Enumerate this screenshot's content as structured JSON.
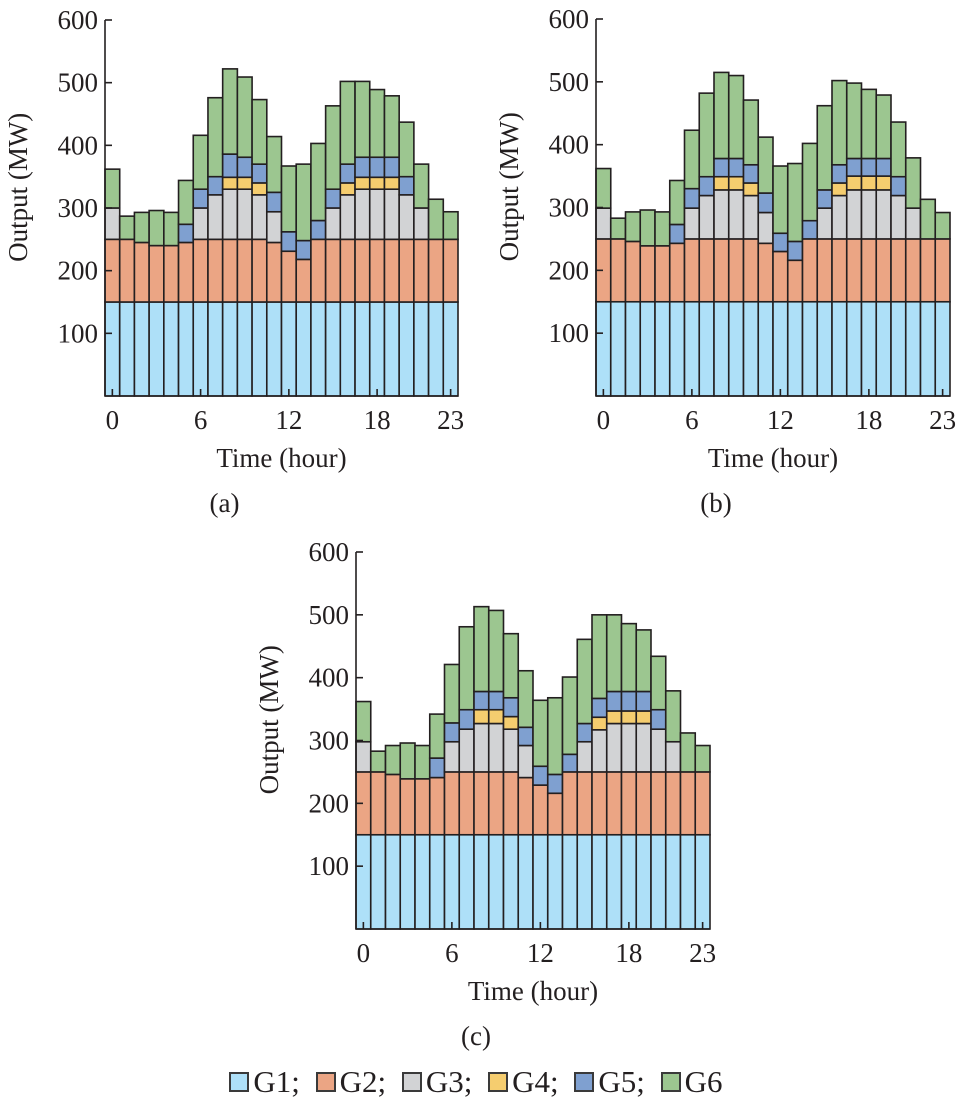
{
  "legend": {
    "items": [
      {
        "label": "G1;",
        "color": "#aee0f8"
      },
      {
        "label": "G2;",
        "color": "#eba584"
      },
      {
        "label": "G3;",
        "color": "#d2d3d5"
      },
      {
        "label": "G4;",
        "color": "#f5cd6f"
      },
      {
        "label": "G5;",
        "color": "#7fa0d0"
      },
      {
        "label": "G6",
        "color": "#9cc690"
      }
    ]
  },
  "chart_data": [
    {
      "type": "bar",
      "stacked": true,
      "panel_label": "(a)",
      "title": "",
      "xlabel": "Time (hour)",
      "ylabel": "Output (MW)",
      "ylim": [
        0,
        600
      ],
      "yticks": [
        "100",
        "200",
        "300",
        "400",
        "500",
        "600"
      ],
      "xticks": [
        "0",
        "6",
        "12",
        "18",
        "23"
      ],
      "x": [
        0,
        1,
        2,
        3,
        4,
        5,
        6,
        7,
        8,
        9,
        10,
        11,
        12,
        13,
        14,
        15,
        16,
        17,
        18,
        19,
        20,
        21,
        22,
        23
      ],
      "series": [
        {
          "name": "G1",
          "values": [
            150,
            150,
            150,
            150,
            150,
            150,
            150,
            150,
            150,
            150,
            150,
            150,
            150,
            150,
            150,
            150,
            150,
            150,
            150,
            150,
            150,
            150,
            150,
            150
          ]
        },
        {
          "name": "G2",
          "values": [
            100,
            100,
            95,
            90,
            90,
            95,
            100,
            100,
            100,
            100,
            100,
            95,
            81,
            68,
            100,
            100,
            100,
            100,
            100,
            100,
            100,
            100,
            100,
            100
          ]
        },
        {
          "name": "G3",
          "values": [
            50,
            0,
            0,
            0,
            0,
            0,
            50,
            71,
            80,
            80,
            71,
            49,
            0,
            0,
            0,
            50,
            71,
            80,
            80,
            80,
            71,
            50,
            0,
            0
          ]
        },
        {
          "name": "G4",
          "values": [
            0,
            0,
            0,
            0,
            0,
            0,
            0,
            0,
            19,
            19,
            19,
            0,
            0,
            0,
            0,
            0,
            19,
            19,
            19,
            19,
            0,
            0,
            0,
            0
          ]
        },
        {
          "name": "G5",
          "values": [
            0,
            0,
            0,
            0,
            0,
            29,
            30,
            29,
            37,
            32,
            30,
            31,
            31,
            30,
            30,
            30,
            30,
            32,
            32,
            32,
            29,
            0,
            0,
            0
          ]
        },
        {
          "name": "G6",
          "values": [
            62,
            37,
            48,
            56,
            53,
            70,
            86,
            126,
            136,
            128,
            103,
            89,
            105,
            122,
            123,
            133,
            132,
            121,
            108,
            98,
            87,
            70,
            64,
            44
          ]
        }
      ]
    },
    {
      "type": "bar",
      "stacked": true,
      "panel_label": "(b)",
      "title": "",
      "xlabel": "Time (hour)",
      "ylabel": "Output (MW)",
      "ylim": [
        0,
        600
      ],
      "yticks": [
        "100",
        "200",
        "300",
        "400",
        "500",
        "600"
      ],
      "xticks": [
        "0",
        "6",
        "12",
        "18",
        "23"
      ],
      "x": [
        0,
        1,
        2,
        3,
        4,
        5,
        6,
        7,
        8,
        9,
        10,
        11,
        12,
        13,
        14,
        15,
        16,
        17,
        18,
        19,
        20,
        21,
        22,
        23
      ],
      "series": [
        {
          "name": "G1",
          "values": [
            150,
            150,
            150,
            150,
            150,
            150,
            150,
            150,
            150,
            150,
            150,
            150,
            150,
            150,
            150,
            150,
            150,
            150,
            150,
            150,
            150,
            150,
            150,
            150
          ]
        },
        {
          "name": "G2",
          "values": [
            100,
            100,
            96,
            89,
            89,
            93,
            100,
            100,
            100,
            100,
            100,
            93,
            80,
            66,
            100,
            100,
            100,
            100,
            100,
            100,
            100,
            100,
            100,
            100
          ]
        },
        {
          "name": "G3",
          "values": [
            49,
            0,
            0,
            0,
            0,
            0,
            49,
            69,
            78,
            78,
            69,
            49,
            0,
            0,
            0,
            49,
            69,
            78,
            78,
            78,
            69,
            49,
            0,
            0
          ]
        },
        {
          "name": "G4",
          "values": [
            0,
            0,
            0,
            0,
            0,
            0,
            0,
            0,
            21,
            21,
            20,
            0,
            0,
            0,
            0,
            0,
            20,
            22,
            22,
            22,
            0,
            0,
            0,
            0
          ]
        },
        {
          "name": "G5",
          "values": [
            0,
            0,
            0,
            0,
            0,
            30,
            31,
            30,
            29,
            29,
            29,
            31,
            29,
            30,
            29,
            29,
            29,
            28,
            28,
            28,
            30,
            0,
            0,
            0
          ]
        },
        {
          "name": "G6",
          "values": [
            63,
            33,
            47,
            57,
            54,
            70,
            93,
            133,
            137,
            132,
            103,
            89,
            107,
            124,
            123,
            134,
            134,
            120,
            110,
            101,
            87,
            80,
            63,
            42
          ]
        }
      ]
    },
    {
      "type": "bar",
      "stacked": true,
      "panel_label": "(c)",
      "title": "",
      "xlabel": "Time (hour)",
      "ylabel": "Output (MW)",
      "ylim": [
        0,
        600
      ],
      "yticks": [
        "100",
        "200",
        "300",
        "400",
        "500",
        "600"
      ],
      "xticks": [
        "0",
        "6",
        "12",
        "18",
        "23"
      ],
      "x": [
        0,
        1,
        2,
        3,
        4,
        5,
        6,
        7,
        8,
        9,
        10,
        11,
        12,
        13,
        14,
        15,
        16,
        17,
        18,
        19,
        20,
        21,
        22,
        23
      ],
      "series": [
        {
          "name": "G1",
          "values": [
            150,
            150,
            150,
            150,
            150,
            150,
            150,
            150,
            150,
            150,
            150,
            150,
            150,
            150,
            150,
            150,
            150,
            150,
            150,
            150,
            150,
            150,
            150,
            150
          ]
        },
        {
          "name": "G2",
          "values": [
            100,
            100,
            96,
            89,
            89,
            91,
            100,
            100,
            100,
            100,
            100,
            91,
            79,
            66,
            100,
            100,
            100,
            100,
            100,
            100,
            100,
            100,
            100,
            100
          ]
        },
        {
          "name": "G3",
          "values": [
            48,
            0,
            0,
            0,
            0,
            0,
            48,
            68,
            77,
            77,
            68,
            51,
            0,
            0,
            0,
            48,
            67,
            77,
            77,
            77,
            68,
            48,
            0,
            0
          ]
        },
        {
          "name": "G4",
          "values": [
            0,
            0,
            0,
            0,
            0,
            0,
            0,
            0,
            22,
            22,
            20,
            0,
            0,
            0,
            0,
            0,
            20,
            20,
            20,
            20,
            0,
            0,
            0,
            0
          ]
        },
        {
          "name": "G5",
          "values": [
            0,
            0,
            0,
            0,
            0,
            31,
            30,
            31,
            29,
            29,
            30,
            29,
            30,
            30,
            28,
            29,
            30,
            31,
            31,
            31,
            31,
            0,
            0,
            0
          ]
        },
        {
          "name": "G6",
          "values": [
            64,
            33,
            46,
            57,
            53,
            70,
            93,
            132,
            135,
            129,
            102,
            90,
            105,
            122,
            123,
            134,
            133,
            122,
            108,
            98,
            85,
            81,
            62,
            42
          ]
        }
      ]
    }
  ]
}
